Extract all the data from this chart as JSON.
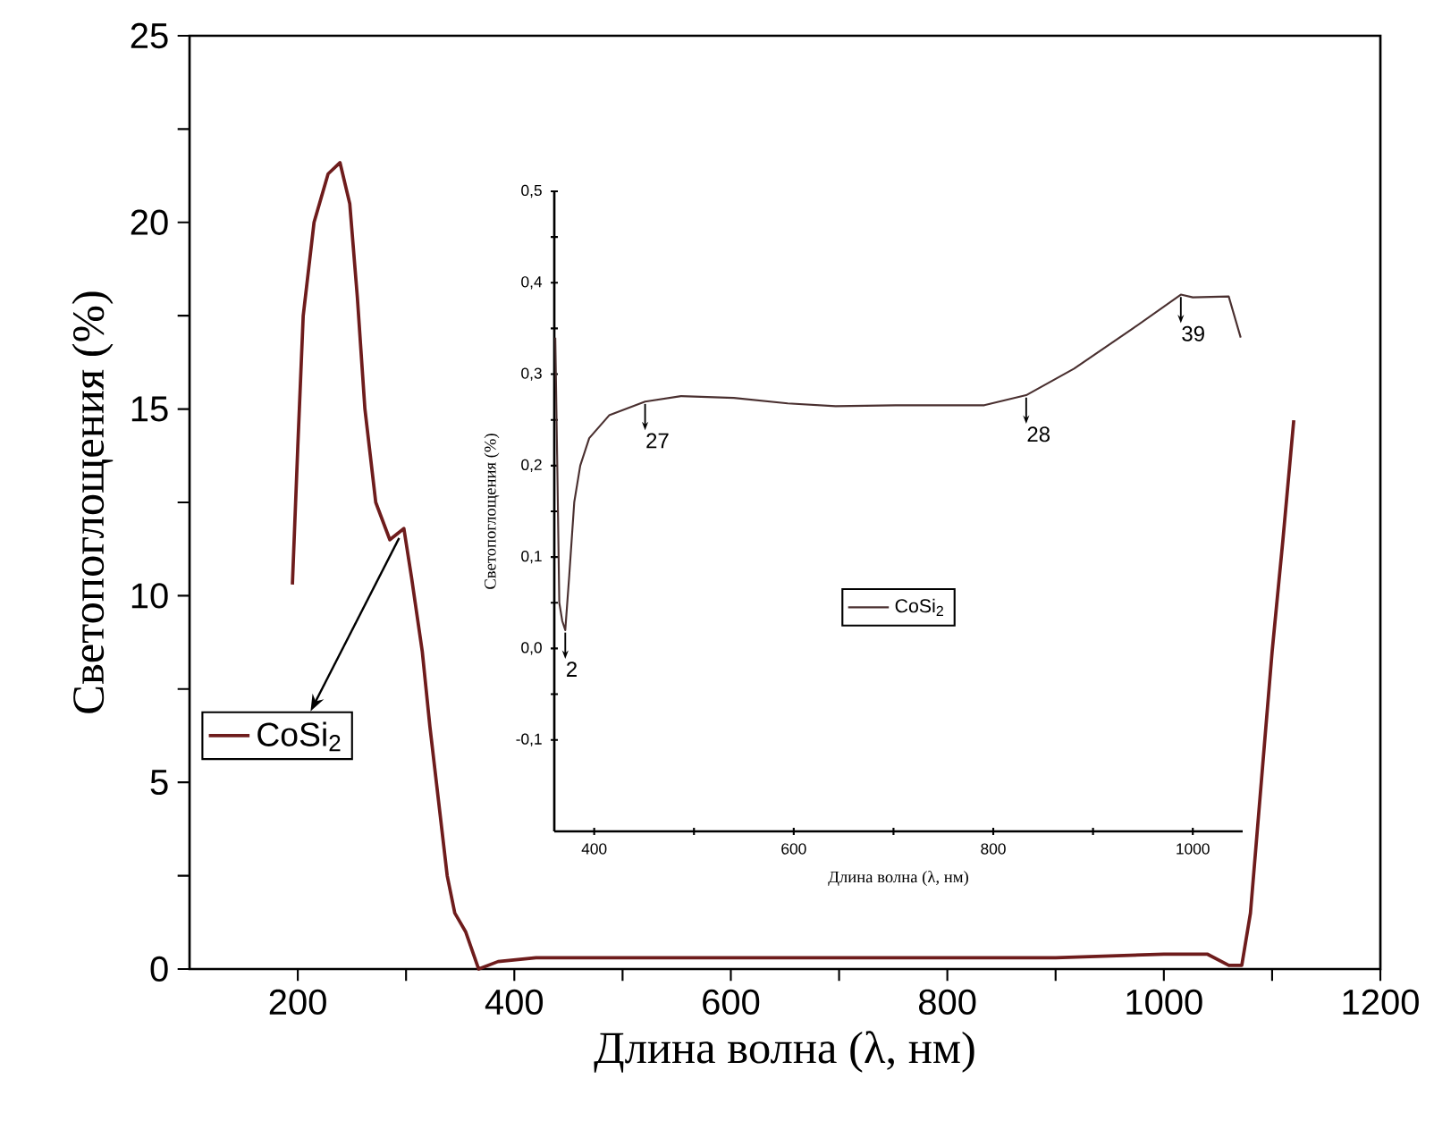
{
  "chart_data": [
    {
      "type": "line",
      "xlabel": "Длина волна (λ, нм)",
      "ylabel": "Светопоглощения (%)",
      "xlim": [
        100,
        1200
      ],
      "ylim": [
        0,
        25
      ],
      "xticks": [
        200,
        400,
        600,
        800,
        1000,
        1200
      ],
      "yticks": [
        0,
        5,
        10,
        15,
        20,
        25
      ],
      "legend": "left",
      "series": [
        {
          "name": "CoSi$_{2}$",
          "color": "#6e1c1c",
          "x": [
            195,
            200,
            205,
            215,
            228,
            239,
            248,
            255,
            262,
            272,
            285,
            298,
            305,
            315,
            322,
            330,
            338,
            345,
            355,
            367,
            385,
            420,
            600,
            800,
            900,
            1000,
            1040,
            1060,
            1072,
            1080,
            1090,
            1100,
            1110,
            1120
          ],
          "values": [
            10.3,
            14,
            17.5,
            20,
            21.3,
            21.6,
            20.5,
            18,
            15,
            12.5,
            11.5,
            11.8,
            10.5,
            8.5,
            6.5,
            4.5,
            2.5,
            1.5,
            1.0,
            0,
            0.2,
            0.3,
            0.3,
            0.3,
            0.3,
            0.4,
            0.4,
            0.1,
            0.1,
            1.5,
            5,
            8.5,
            11.5,
            14.7
          ]
        }
      ]
    },
    {
      "type": "line",
      "xlabel": "Длина волна (λ, нм)",
      "ylabel": "Светопоглощения (%)",
      "xlim": [
        360,
        1050
      ],
      "ylim": [
        -0.2,
        0.5
      ],
      "xticks": [
        400,
        600,
        800,
        1000
      ],
      "yticks": [
        {
          "value": -0.1,
          "label": "-0,1"
        },
        {
          "value": 0,
          "label": "0,0"
        },
        {
          "value": 0.1,
          "label": "0,1"
        },
        {
          "value": 0.2,
          "label": "0,2"
        },
        {
          "value": 0.3,
          "label": "0,3"
        },
        {
          "value": 0.4,
          "label": "0,4"
        },
        {
          "value": 0.5,
          "label": "0,5"
        }
      ],
      "legend": "center",
      "annotations": [
        {
          "text": "2",
          "x": 371,
          "y": 0.02
        },
        {
          "text": "27",
          "x": 451,
          "y": 0.27
        },
        {
          "text": "28",
          "x": 833,
          "y": 0.277
        },
        {
          "text": "39",
          "x": 988,
          "y": 0.387
        }
      ],
      "series": [
        {
          "name": "CoSi$_{2}$",
          "color": "#4a3030",
          "x": [
            361,
            363,
            365,
            368,
            371,
            375,
            380,
            386,
            395,
            415,
            451,
            487,
            540,
            594,
            642,
            702,
            791,
            833,
            881,
            940,
            988,
            1000,
            1036,
            1048
          ],
          "values": [
            0.34,
            0.2,
            0.05,
            0.03,
            0.02,
            0.08,
            0.16,
            0.2,
            0.23,
            0.255,
            0.27,
            0.276,
            0.274,
            0.268,
            0.265,
            0.266,
            0.266,
            0.277,
            0.306,
            0.35,
            0.387,
            0.384,
            0.385,
            0.34
          ]
        }
      ]
    }
  ]
}
